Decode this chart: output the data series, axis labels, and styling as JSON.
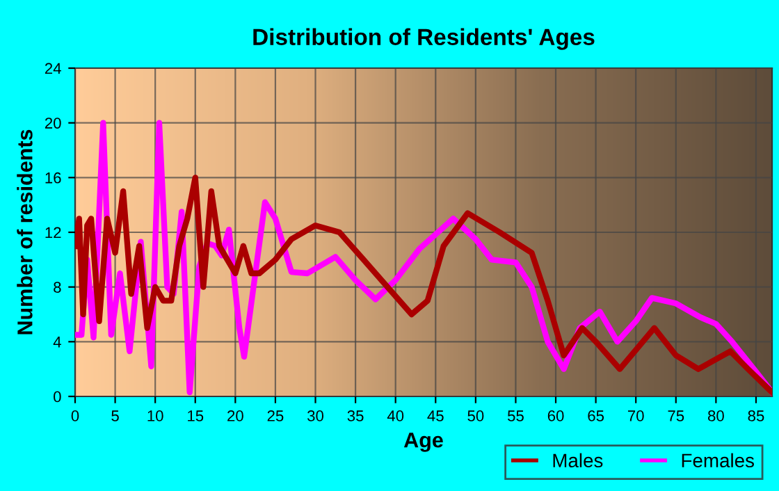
{
  "chart_data": {
    "type": "line",
    "title": "Distribution of Residents' Ages",
    "xlabel": "Age",
    "ylabel": "Number of residents",
    "xlim": [
      0,
      87
    ],
    "xticks": [
      0,
      5,
      10,
      15,
      20,
      25,
      30,
      35,
      40,
      45,
      50,
      55,
      60,
      65,
      70,
      75,
      80,
      85
    ],
    "ylim": [
      0,
      24
    ],
    "yticks": [
      0,
      4,
      8,
      12,
      16,
      20,
      24
    ],
    "grid": true,
    "legend": "bottom right",
    "marker": "none",
    "line_style": "solid",
    "series": [
      {
        "name": "Males",
        "color": "#aa0000",
        "x": [
          0,
          0.5,
          1,
          1.5,
          2,
          3,
          4,
          5,
          6,
          7,
          8,
          9,
          10,
          11,
          12,
          13,
          14,
          15,
          16,
          17,
          18,
          19,
          20,
          21,
          22,
          23,
          25,
          27,
          30,
          33,
          36,
          39,
          42,
          44,
          46,
          49,
          53,
          57,
          59,
          61,
          63.3,
          65,
          68,
          72.3,
          75,
          77.8,
          81.8,
          84,
          87
        ],
        "values": [
          11,
          13,
          6,
          12.5,
          13,
          5.5,
          13,
          10.5,
          15,
          7.5,
          11,
          5,
          8,
          7,
          7,
          11,
          13,
          16,
          8,
          15,
          11,
          10,
          9,
          11,
          9,
          9,
          10,
          11.5,
          12.5,
          12,
          10,
          8,
          6,
          7,
          11,
          13.4,
          12,
          10.5,
          7,
          3,
          5,
          4,
          2,
          5,
          3,
          2,
          3.3,
          2,
          0.3
        ]
      },
      {
        "name": "Females",
        "color": "#ff00ff",
        "x": [
          0,
          0.8,
          1.5,
          2.3,
          3.5,
          4.5,
          5.6,
          6.8,
          8.2,
          9.5,
          10.5,
          11.5,
          12.3,
          13.3,
          14.3,
          15.5,
          16.5,
          17.5,
          18.3,
          19.2,
          20.5,
          21.1,
          22.5,
          23.7,
          25,
          27,
          29,
          32.5,
          35,
          37.5,
          40,
          43,
          47.2,
          50,
          52,
          55,
          57,
          59,
          61,
          63,
          65.5,
          67.7,
          70,
          72,
          75,
          78,
          80,
          82,
          85,
          87
        ],
        "values": [
          4.5,
          4.5,
          10,
          4.3,
          20,
          4.5,
          9,
          3.3,
          11.3,
          2.2,
          20,
          8,
          7.5,
          13.5,
          0.3,
          9.5,
          11.2,
          11,
          10.3,
          12.2,
          5,
          2.9,
          9,
          14.2,
          13,
          9.1,
          9,
          10.2,
          8.5,
          7.1,
          8.5,
          10.8,
          13,
          11.5,
          10,
          9.8,
          8,
          4,
          2,
          5,
          6.2,
          4,
          5.5,
          7.2,
          6.8,
          5.8,
          5.3,
          4,
          1.8,
          0.3
        ]
      }
    ]
  }
}
